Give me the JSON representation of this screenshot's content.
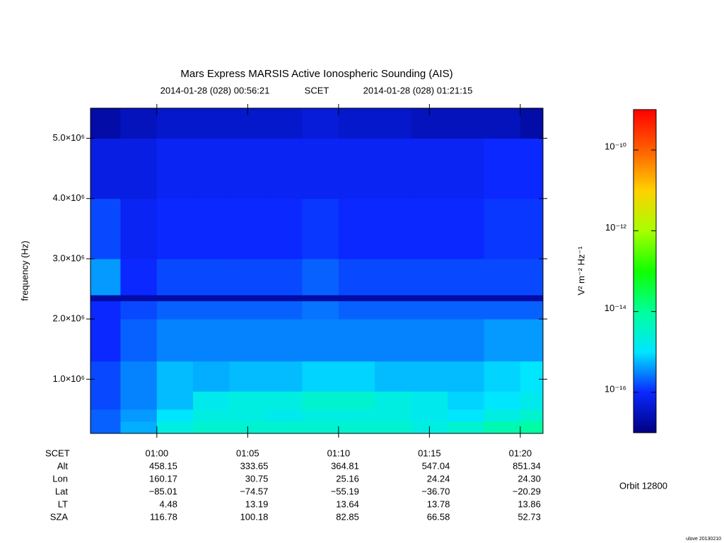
{
  "chart_data": {
    "type": "spectrogram",
    "title": "Mars Express MARSIS Active Ionospheric Sounding (AIS)",
    "start_time": "2014-01-28 (028) 00:56:21",
    "time_system": "SCET",
    "end_time": "2014-01-28 (028) 01:21:15",
    "ylabel": "frequency (Hz)",
    "colorbar_label": "V² m⁻² Hz⁻¹",
    "orbit": "Orbit 12800",
    "footer": "ulove 20130210",
    "xlim": [
      56.35,
      81.25
    ],
    "xticks": [
      {
        "value": 60,
        "label": "01:00"
      },
      {
        "value": 65,
        "label": "01:05"
      },
      {
        "value": 70,
        "label": "01:10"
      },
      {
        "value": 75,
        "label": "01:15"
      },
      {
        "value": 80,
        "label": "01:20"
      }
    ],
    "ylim": [
      100000,
      5500000
    ],
    "yticks": [
      {
        "value": 1000000,
        "label": "1.0×10⁶"
      },
      {
        "value": 2000000,
        "label": "2.0×10⁶"
      },
      {
        "value": 3000000,
        "label": "3.0×10⁶"
      },
      {
        "value": 4000000,
        "label": "4.0×10⁶"
      },
      {
        "value": 5000000,
        "label": "5.0×10⁶"
      }
    ],
    "zlim": [
      1e-17,
      1e-09
    ],
    "zscale": "log",
    "zticks": [
      {
        "value": 1e-16,
        "label": "10⁻¹⁶"
      },
      {
        "value": 1e-14,
        "label": "10⁻¹⁴"
      },
      {
        "value": 1e-12,
        "label": "10⁻¹²"
      },
      {
        "value": 1e-10,
        "label": "10⁻¹⁰"
      }
    ],
    "colormap": [
      "#000080",
      "#0a28ff",
      "#00e6ff",
      "#00ff9a",
      "#10ff00",
      "#a8ff00",
      "#ffd000",
      "#ff6000",
      "#ff0000"
    ],
    "time_bins": [
      56.35,
      58,
      60,
      62,
      64,
      66,
      68,
      70,
      72,
      74,
      76,
      78,
      80,
      81.25
    ],
    "freq_bins": [
      100000,
      300000,
      500000,
      800000,
      1300000,
      2000000,
      2300000,
      2400000,
      3000000,
      4000000,
      5000000,
      5500000
    ],
    "values": [
      [
        2e-16,
        5e-16,
        2e-15,
        3e-15,
        3e-15,
        3e-15,
        3e-15,
        3e-15,
        3e-15,
        2e-15,
        3e-15,
        6e-15,
        8e-15
      ],
      [
        2e-16,
        4e-16,
        1e-15,
        2e-15,
        2e-15,
        1.5e-15,
        2e-15,
        2e-15,
        2e-15,
        1.5e-15,
        1e-15,
        2e-15,
        3e-15
      ],
      [
        1.5e-16,
        3e-16,
        6e-16,
        1.5e-15,
        2e-15,
        2e-15,
        3e-15,
        3e-15,
        2e-15,
        1.5e-15,
        8e-16,
        1e-15,
        1.5e-15
      ],
      [
        1.5e-16,
        3e-16,
        6e-16,
        5e-16,
        6e-16,
        6e-16,
        8e-16,
        8e-16,
        6e-16,
        6e-16,
        6e-16,
        8e-16,
        1e-15
      ],
      [
        1e-16,
        2e-16,
        3e-16,
        3e-16,
        3e-16,
        3e-16,
        3e-16,
        3e-16,
        3e-16,
        3e-16,
        3e-16,
        4e-16,
        4e-16
      ],
      [
        1e-16,
        1.5e-16,
        2e-16,
        2e-16,
        2e-16,
        2e-16,
        2.5e-16,
        2e-16,
        2e-16,
        2e-16,
        2e-16,
        2e-16,
        2e-16
      ],
      [
        2e-17,
        2e-17,
        2e-17,
        2e-17,
        2e-17,
        2e-17,
        2e-17,
        2e-17,
        2e-17,
        2e-17,
        2e-17,
        2e-17,
        2e-17
      ],
      [
        4e-16,
        1e-16,
        1.5e-16,
        1.5e-16,
        1.5e-16,
        1.5e-16,
        2e-16,
        1.5e-16,
        1.5e-16,
        1.5e-16,
        1.5e-16,
        1.5e-16,
        1.5e-16
      ],
      [
        1.5e-16,
        8e-17,
        1e-16,
        1e-16,
        1e-16,
        1e-16,
        1.2e-16,
        1e-16,
        1e-16,
        1e-16,
        1e-16,
        1.2e-16,
        1.2e-16
      ],
      [
        6e-17,
        6e-17,
        8e-17,
        8e-17,
        8e-17,
        8e-17,
        8e-17,
        8e-17,
        8e-17,
        8e-17,
        8e-17,
        1e-16,
        1e-16
      ],
      [
        2e-17,
        3e-17,
        4e-17,
        4e-17,
        4e-17,
        4e-17,
        5e-17,
        4e-17,
        4e-17,
        3e-17,
        3e-17,
        3e-17,
        2e-17
      ]
    ]
  },
  "ephemeris": {
    "labels": [
      "SCET",
      "Alt",
      "Lon",
      "Lat",
      "LT",
      "SZA"
    ],
    "rows": [
      [
        "458.15",
        "333.65",
        "364.81",
        "547.04",
        "851.34"
      ],
      [
        "160.17",
        "30.75",
        "25.16",
        "24.24",
        "24.30"
      ],
      [
        "−85.01",
        "−74.57",
        "−55.19",
        "−36.70",
        "−20.29"
      ],
      [
        "4.48",
        "13.19",
        "13.64",
        "13.78",
        "13.86"
      ],
      [
        "116.78",
        "100.18",
        "82.85",
        "66.58",
        "52.73"
      ]
    ]
  }
}
